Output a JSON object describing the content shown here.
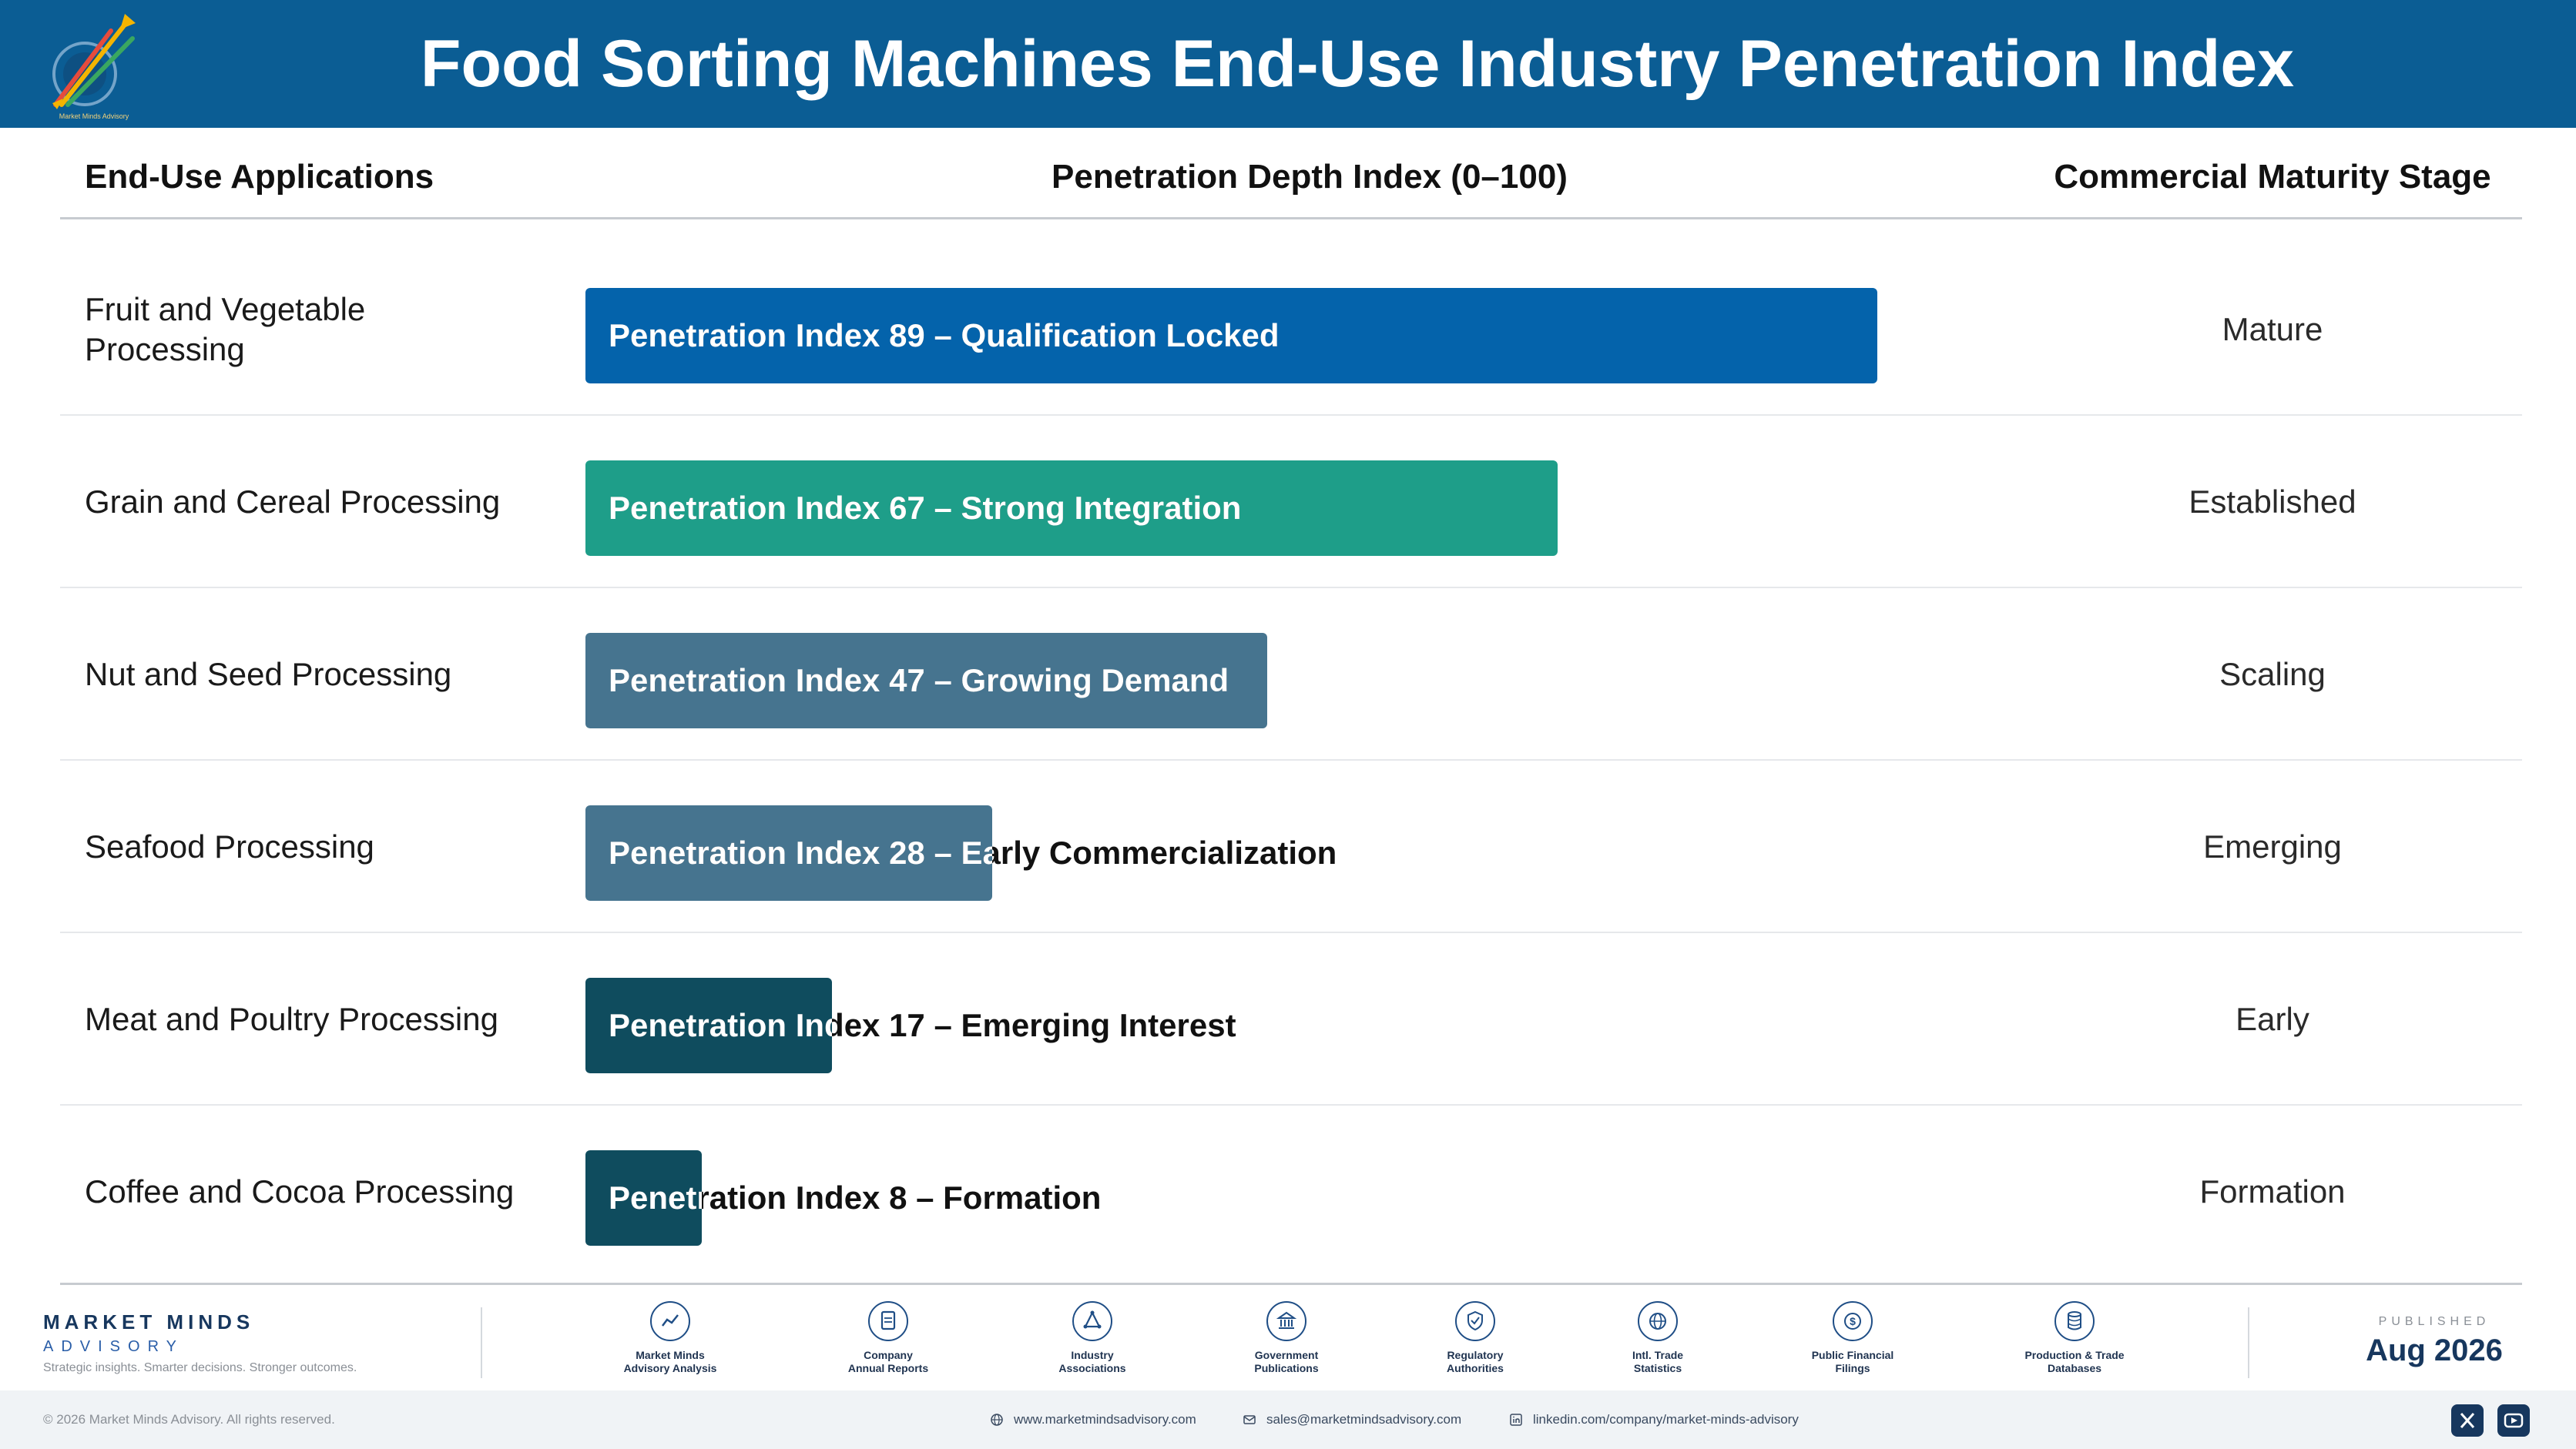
{
  "header": {
    "title": "Food Sorting Machines End-Use Industry Penetration Index",
    "logo_text": "Market Minds Advisory"
  },
  "table": {
    "col_applications": "End-Use Applications",
    "col_penetration": "Penetration Depth Index (0–100)",
    "col_stage": "Commercial Maturity Stage"
  },
  "chart_data": {
    "type": "bar",
    "orientation": "horizontal",
    "title": "Food Sorting Machines End-Use Industry Penetration Index",
    "xlabel": "Penetration Depth Index (0–100)",
    "xlim": [
      0,
      100
    ],
    "categories": [
      "Fruit and Vegetable Processing",
      "Grain and Cereal Processing",
      "Nut and Seed Processing",
      "Seafood Processing",
      "Meat and Poultry Processing",
      "Coffee and Cocoa Processing"
    ],
    "values": [
      89,
      67,
      47,
      28,
      17,
      8
    ],
    "bar_labels": [
      "Penetration Index 89 – Qualification Locked",
      "Penetration Index 67 – Strong Integration",
      "Penetration Index 47 – Growing Demand",
      "Penetration Index 28 – Early Commercialization",
      "Penetration Index 17 – Emerging Interest",
      "Penetration Index 8 – Formation"
    ],
    "stages": [
      "Mature",
      "Established",
      "Scaling",
      "Emerging",
      "Early",
      "Formation"
    ],
    "colors": [
      "#0463ab",
      "#1e9e89",
      "#46748f",
      "#46748f",
      "#0f4c5e",
      "#0f4c5e"
    ]
  },
  "footer": {
    "brand_name": "MARKET MINDS",
    "brand_sub": "ADVISORY",
    "brand_tagline": "Strategic insights. Smarter decisions. Stronger outcomes.",
    "sources": [
      {
        "label": "Market Minds\nAdvisory Analysis",
        "icon": "trend-chart-icon"
      },
      {
        "label": "Company\nAnnual Reports",
        "icon": "document-icon"
      },
      {
        "label": "Industry\nAssociations",
        "icon": "network-icon"
      },
      {
        "label": "Government\nPublications",
        "icon": "government-building-icon"
      },
      {
        "label": "Regulatory\nAuthorities",
        "icon": "shield-check-icon"
      },
      {
        "label": "Intl. Trade\nStatistics",
        "icon": "globe-icon"
      },
      {
        "label": "Public Financial\nFilings",
        "icon": "dollar-coin-icon"
      },
      {
        "label": "Production & Trade\nDatabases",
        "icon": "database-icon"
      }
    ],
    "published_label": "PUBLISHED",
    "published_date": "Aug 2026",
    "copyright": "© 2026 Market Minds Advisory. All rights reserved.",
    "website": "www.marketmindsadvisory.com",
    "email": "sales@marketmindsadvisory.com",
    "linkedin": "linkedin.com/company/market-minds-advisory"
  }
}
